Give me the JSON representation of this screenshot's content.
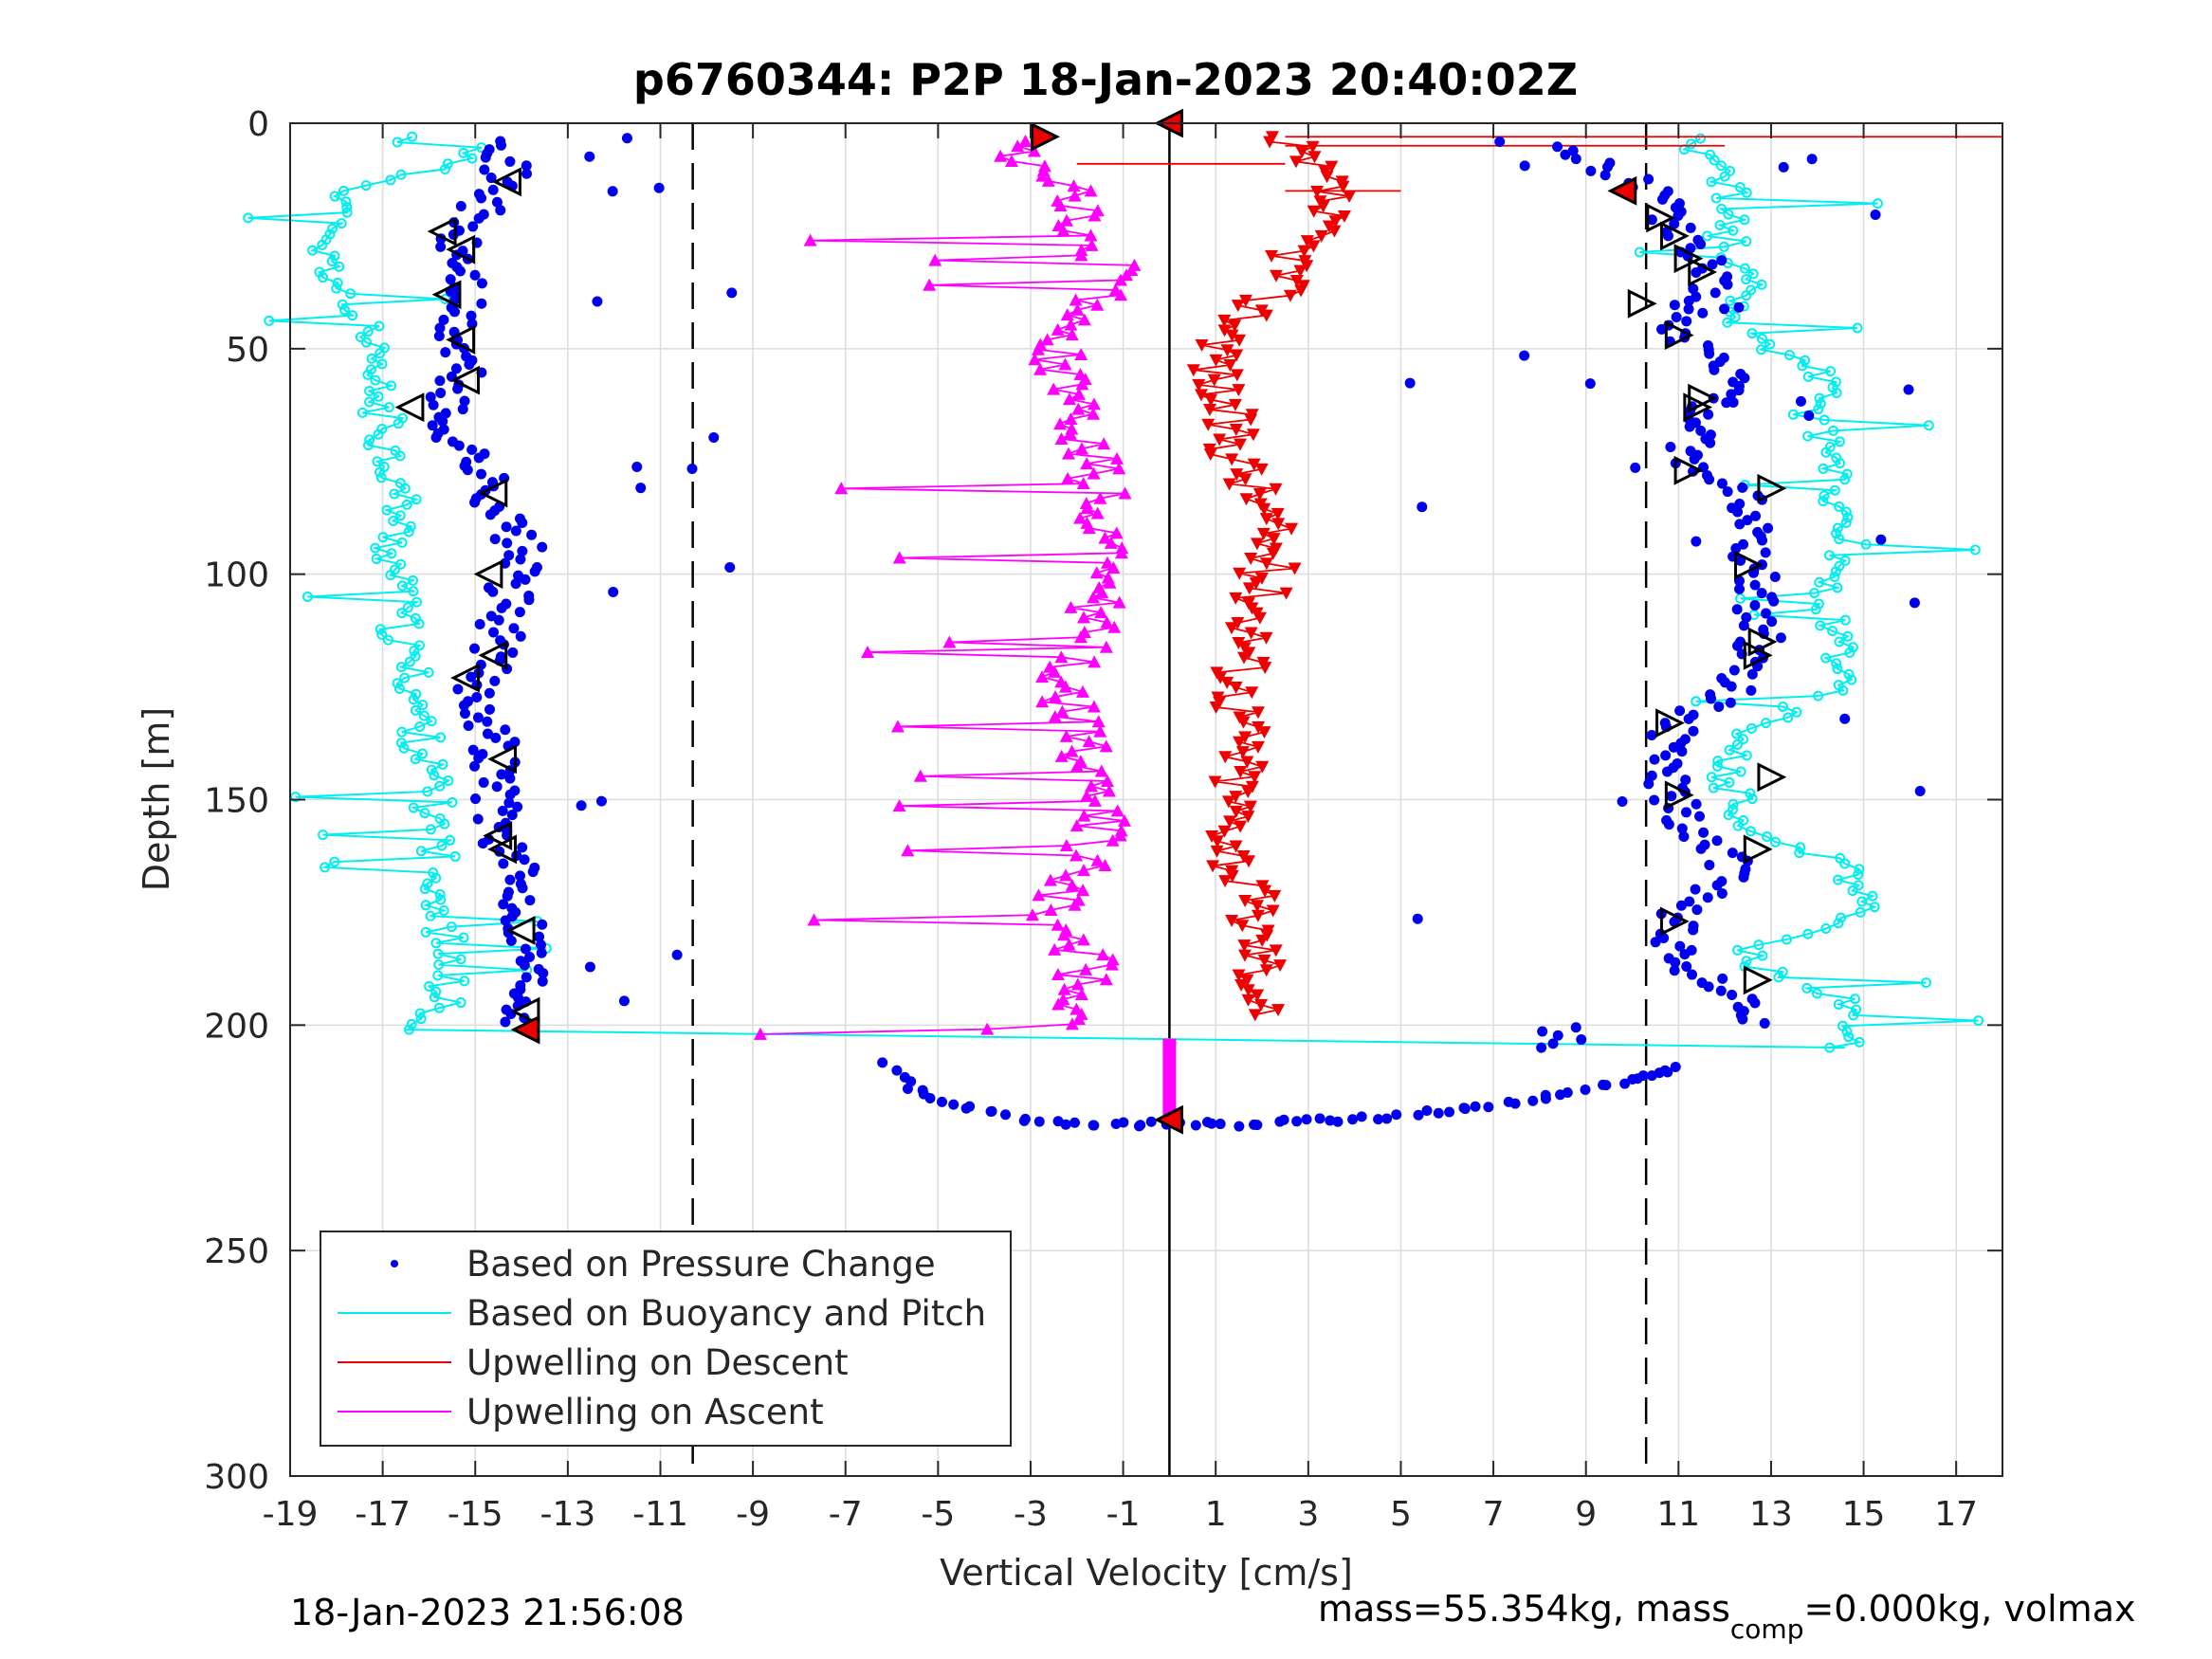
{
  "chart_data": {
    "type": "scatter",
    "title": "p6760344: P2P 18-Jan-2023 20:40:02Z",
    "xlabel": "Vertical Velocity [cm/s]",
    "ylabel": "Depth [m]",
    "xlim": [
      -19,
      18
    ],
    "ylim": [
      0,
      300
    ],
    "y_reversed": true,
    "x_ticks": [
      "-19",
      "-17",
      "-15",
      "-13",
      "-11",
      "-9",
      "-7",
      "-5",
      "-3",
      "-1",
      "1",
      "3",
      "5",
      "7",
      "9",
      "11",
      "13",
      "15",
      "17"
    ],
    "y_ticks": [
      "0",
      "50",
      "100",
      "150",
      "200",
      "250",
      "300"
    ],
    "grid": true,
    "reference_lines": {
      "dashed_x": [
        -10.3,
        10.3
      ],
      "solid_x": [
        0
      ]
    },
    "legend": {
      "placement": "bottom-left",
      "entries": [
        {
          "label": "Based on Pressure Change",
          "color": "#0000ee",
          "style": "dot"
        },
        {
          "label": "Based on Buoyancy and Pitch",
          "color": "#00eeee",
          "style": "line"
        },
        {
          "label": "Upwelling on Descent",
          "color": "#ee0000",
          "style": "line"
        },
        {
          "label": "Upwelling on Ascent",
          "color": "#ff00ff",
          "style": "line"
        }
      ]
    },
    "series": [
      {
        "name": "Based on Pressure Change",
        "color": "#0000ee",
        "descent_profile": {
          "y": [
            5,
            15,
            25,
            35,
            45,
            55,
            65,
            75,
            85,
            95,
            105,
            115,
            125,
            135,
            145,
            155,
            165,
            175,
            185,
            195,
            200
          ],
          "x": [
            -14.2,
            -14.5,
            -15.5,
            -15.2,
            -15.5,
            -15.3,
            -15.8,
            -15,
            -14.5,
            -14,
            -14.3,
            -14.5,
            -15,
            -14.6,
            -14.5,
            -14.5,
            -14.2,
            -13.9,
            -13.8,
            -13.8,
            -14
          ]
        },
        "ascent_profile": {
          "y": [
            200,
            195,
            185,
            175,
            165,
            155,
            145,
            135,
            125,
            115,
            105,
            95,
            85,
            75,
            65,
            55,
            45,
            35,
            25,
            15,
            5
          ],
          "x": [
            12.7,
            12.6,
            10.9,
            11.1,
            12.2,
            11,
            10.8,
            10.9,
            12.2,
            12.8,
            12.7,
            12.5,
            12.6,
            11,
            11.6,
            12.1,
            10.9,
            11.8,
            11.1,
            10.4,
            8.5
          ]
        },
        "turnaround_x": [
          -6.1,
          -5.6,
          -4.9,
          -4,
          -3,
          -2,
          -1,
          0,
          1,
          2,
          3,
          4,
          5,
          6,
          7,
          8,
          9,
          10,
          10.5,
          11
        ],
        "turnaround_y": [
          208,
          214,
          217,
          219,
          221,
          222,
          222,
          222,
          222,
          222,
          221,
          221,
          220,
          219,
          218,
          216,
          214,
          212,
          211,
          209
        ]
      },
      {
        "name": "Based on Buoyancy and Pitch",
        "color": "#00eeee",
        "descent_profile": {
          "y": [
            5,
            15,
            25,
            35,
            45,
            55,
            65,
            75,
            85,
            95,
            105,
            115,
            125,
            135,
            145,
            155,
            165,
            175,
            185,
            195,
            200
          ],
          "x": [
            -14.5,
            -17.5,
            -18.5,
            -18,
            -17.5,
            -17.3,
            -17,
            -16.8,
            -16.6,
            -16.8,
            -16.7,
            -16.6,
            -16.3,
            -16.2,
            -16,
            -15.9,
            -15.8,
            -15.7,
            -15.6,
            -15.7,
            -16.5
          ]
        },
        "ascent_profile": {
          "y": [
            205,
            195,
            185,
            175,
            165,
            155,
            145,
            135,
            125,
            115,
            105,
            95,
            85,
            75,
            65,
            55,
            45,
            35,
            25,
            15,
            5
          ],
          "x": [
            14.6,
            14.6,
            12.3,
            14.9,
            14.8,
            12.2,
            12.1,
            12.2,
            14.7,
            14.5,
            14.3,
            14.7,
            14.4,
            14.3,
            13.9,
            14.1,
            12,
            12.6,
            12,
            12.3,
            11.5
          ]
        }
      },
      {
        "name": "Upwelling on Descent",
        "color": "#ee0000",
        "y": [
          5,
          15,
          25,
          35,
          45,
          55,
          65,
          75,
          85,
          95,
          105,
          115,
          125,
          135,
          145,
          155,
          165,
          175,
          185,
          195
        ],
        "x": [
          2.5,
          3.5,
          3.0,
          2.5,
          1.5,
          1.0,
          1.2,
          1.5,
          2.0,
          2.2,
          2.0,
          1.8,
          1.5,
          1.6,
          1.5,
          1.4,
          1.5,
          1.8,
          2.0,
          2.0
        ]
      },
      {
        "name": "Upwelling on Ascent",
        "color": "#ff00ff",
        "y": [
          200,
          195,
          185,
          175,
          165,
          155,
          145,
          135,
          125,
          115,
          105,
          95,
          85,
          75,
          65,
          55,
          45,
          35,
          25,
          15,
          5
        ],
        "x": [
          -2.0,
          -2.0,
          -1.8,
          -2.5,
          -2.0,
          -1.5,
          -1.8,
          -1.8,
          -2.5,
          -1.8,
          -1.5,
          -1.2,
          -1.5,
          -1.7,
          -1.8,
          -2.5,
          -2.5,
          -1.0,
          -2.0,
          -2.0,
          -3.5
        ]
      }
    ]
  },
  "footer": {
    "timestamp": "18-Jan-2023 21:56:08",
    "mass_text": "mass=55.354kg, mass",
    "mass_sub": "comp",
    "mass_rest": "=0.000kg, volmax"
  }
}
